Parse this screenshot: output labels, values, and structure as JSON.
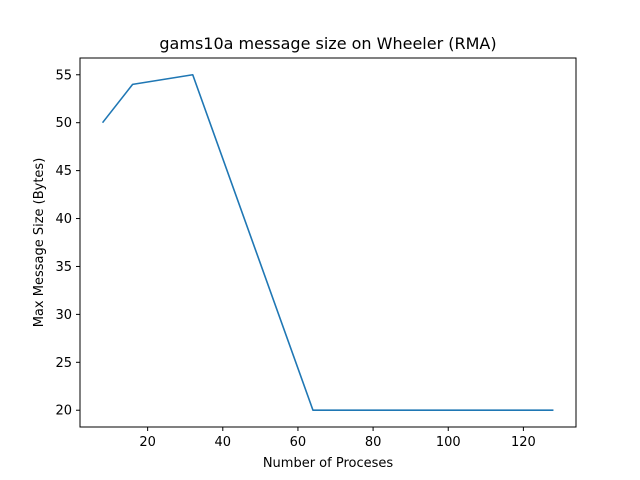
{
  "chart_data": {
    "type": "line",
    "title": "gams10a message size on Wheeler (RMA)",
    "xlabel": "Number of Proceses",
    "ylabel": "Max Message Size (Bytes)",
    "xlim": [
      2,
      134
    ],
    "ylim": [
      18.25,
      56.75
    ],
    "xticks": [
      20,
      40,
      60,
      80,
      100,
      120
    ],
    "yticks": [
      20,
      25,
      30,
      35,
      40,
      45,
      50,
      55
    ],
    "grid": false,
    "series": [
      {
        "color": "#1f77b4",
        "x": [
          8,
          16,
          32,
          64,
          128
        ],
        "y": [
          50,
          54,
          55,
          20,
          20
        ]
      }
    ]
  }
}
